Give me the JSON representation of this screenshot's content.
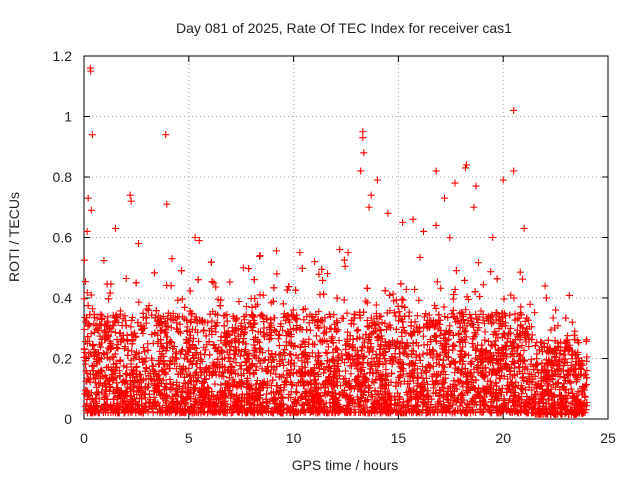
{
  "chart_data": {
    "type": "scatter",
    "title": "Day 081 of 2025, Rate Of TEC Index for receiver cas1",
    "xlabel": "GPS time / hours",
    "ylabel": "ROTI / TECUs",
    "xlim": [
      0,
      25
    ],
    "ylim": [
      0,
      1.2
    ],
    "xticks": [
      0,
      5,
      10,
      15,
      20,
      25
    ],
    "yticks": [
      0,
      0.2,
      0.4,
      0.6,
      0.8,
      1,
      1.2
    ],
    "xtick_labels": [
      "0",
      "5",
      "10",
      "15",
      "20",
      "25"
    ],
    "ytick_labels": [
      "0",
      "0.2",
      "0.4",
      "0.6",
      "0.8",
      "1",
      "1.2"
    ],
    "grid": true,
    "marker": "+",
    "color": "#ff0000",
    "series": [
      {
        "name": "ROTI",
        "x": [
          0.3,
          0.32,
          0.4,
          3.9,
          20.5,
          13.3,
          13.3,
          13.35,
          13.2,
          18.25,
          18.2,
          16.8,
          17.7,
          0.2,
          0.35,
          2.2,
          2.25,
          3.95,
          20.5,
          20.0,
          18.7,
          17.2,
          14.5,
          15.2,
          15.7,
          13.7,
          14.0,
          5.3,
          5.5,
          10.3,
          0.15,
          1.5,
          2.6,
          4.2,
          6.2,
          7.6,
          8.4,
          9.2,
          11.0,
          12.2,
          12.6,
          13.6,
          16.2,
          16.8,
          18.6,
          19.5,
          21.0,
          22.0,
          22.5,
          23.3
        ],
        "y": [
          1.16,
          1.15,
          0.94,
          0.94,
          1.02,
          0.95,
          0.93,
          0.88,
          0.82,
          0.84,
          0.83,
          0.82,
          0.78,
          0.73,
          0.69,
          0.74,
          0.72,
          0.71,
          0.82,
          0.79,
          0.77,
          0.73,
          0.68,
          0.65,
          0.66,
          0.74,
          0.79,
          0.6,
          0.59,
          0.55,
          0.62,
          0.63,
          0.58,
          0.53,
          0.45,
          0.5,
          0.54,
          0.48,
          0.52,
          0.56,
          0.55,
          0.7,
          0.62,
          0.64,
          0.7,
          0.6,
          0.63,
          0.44,
          0.36,
          0.32
        ]
      }
    ]
  }
}
